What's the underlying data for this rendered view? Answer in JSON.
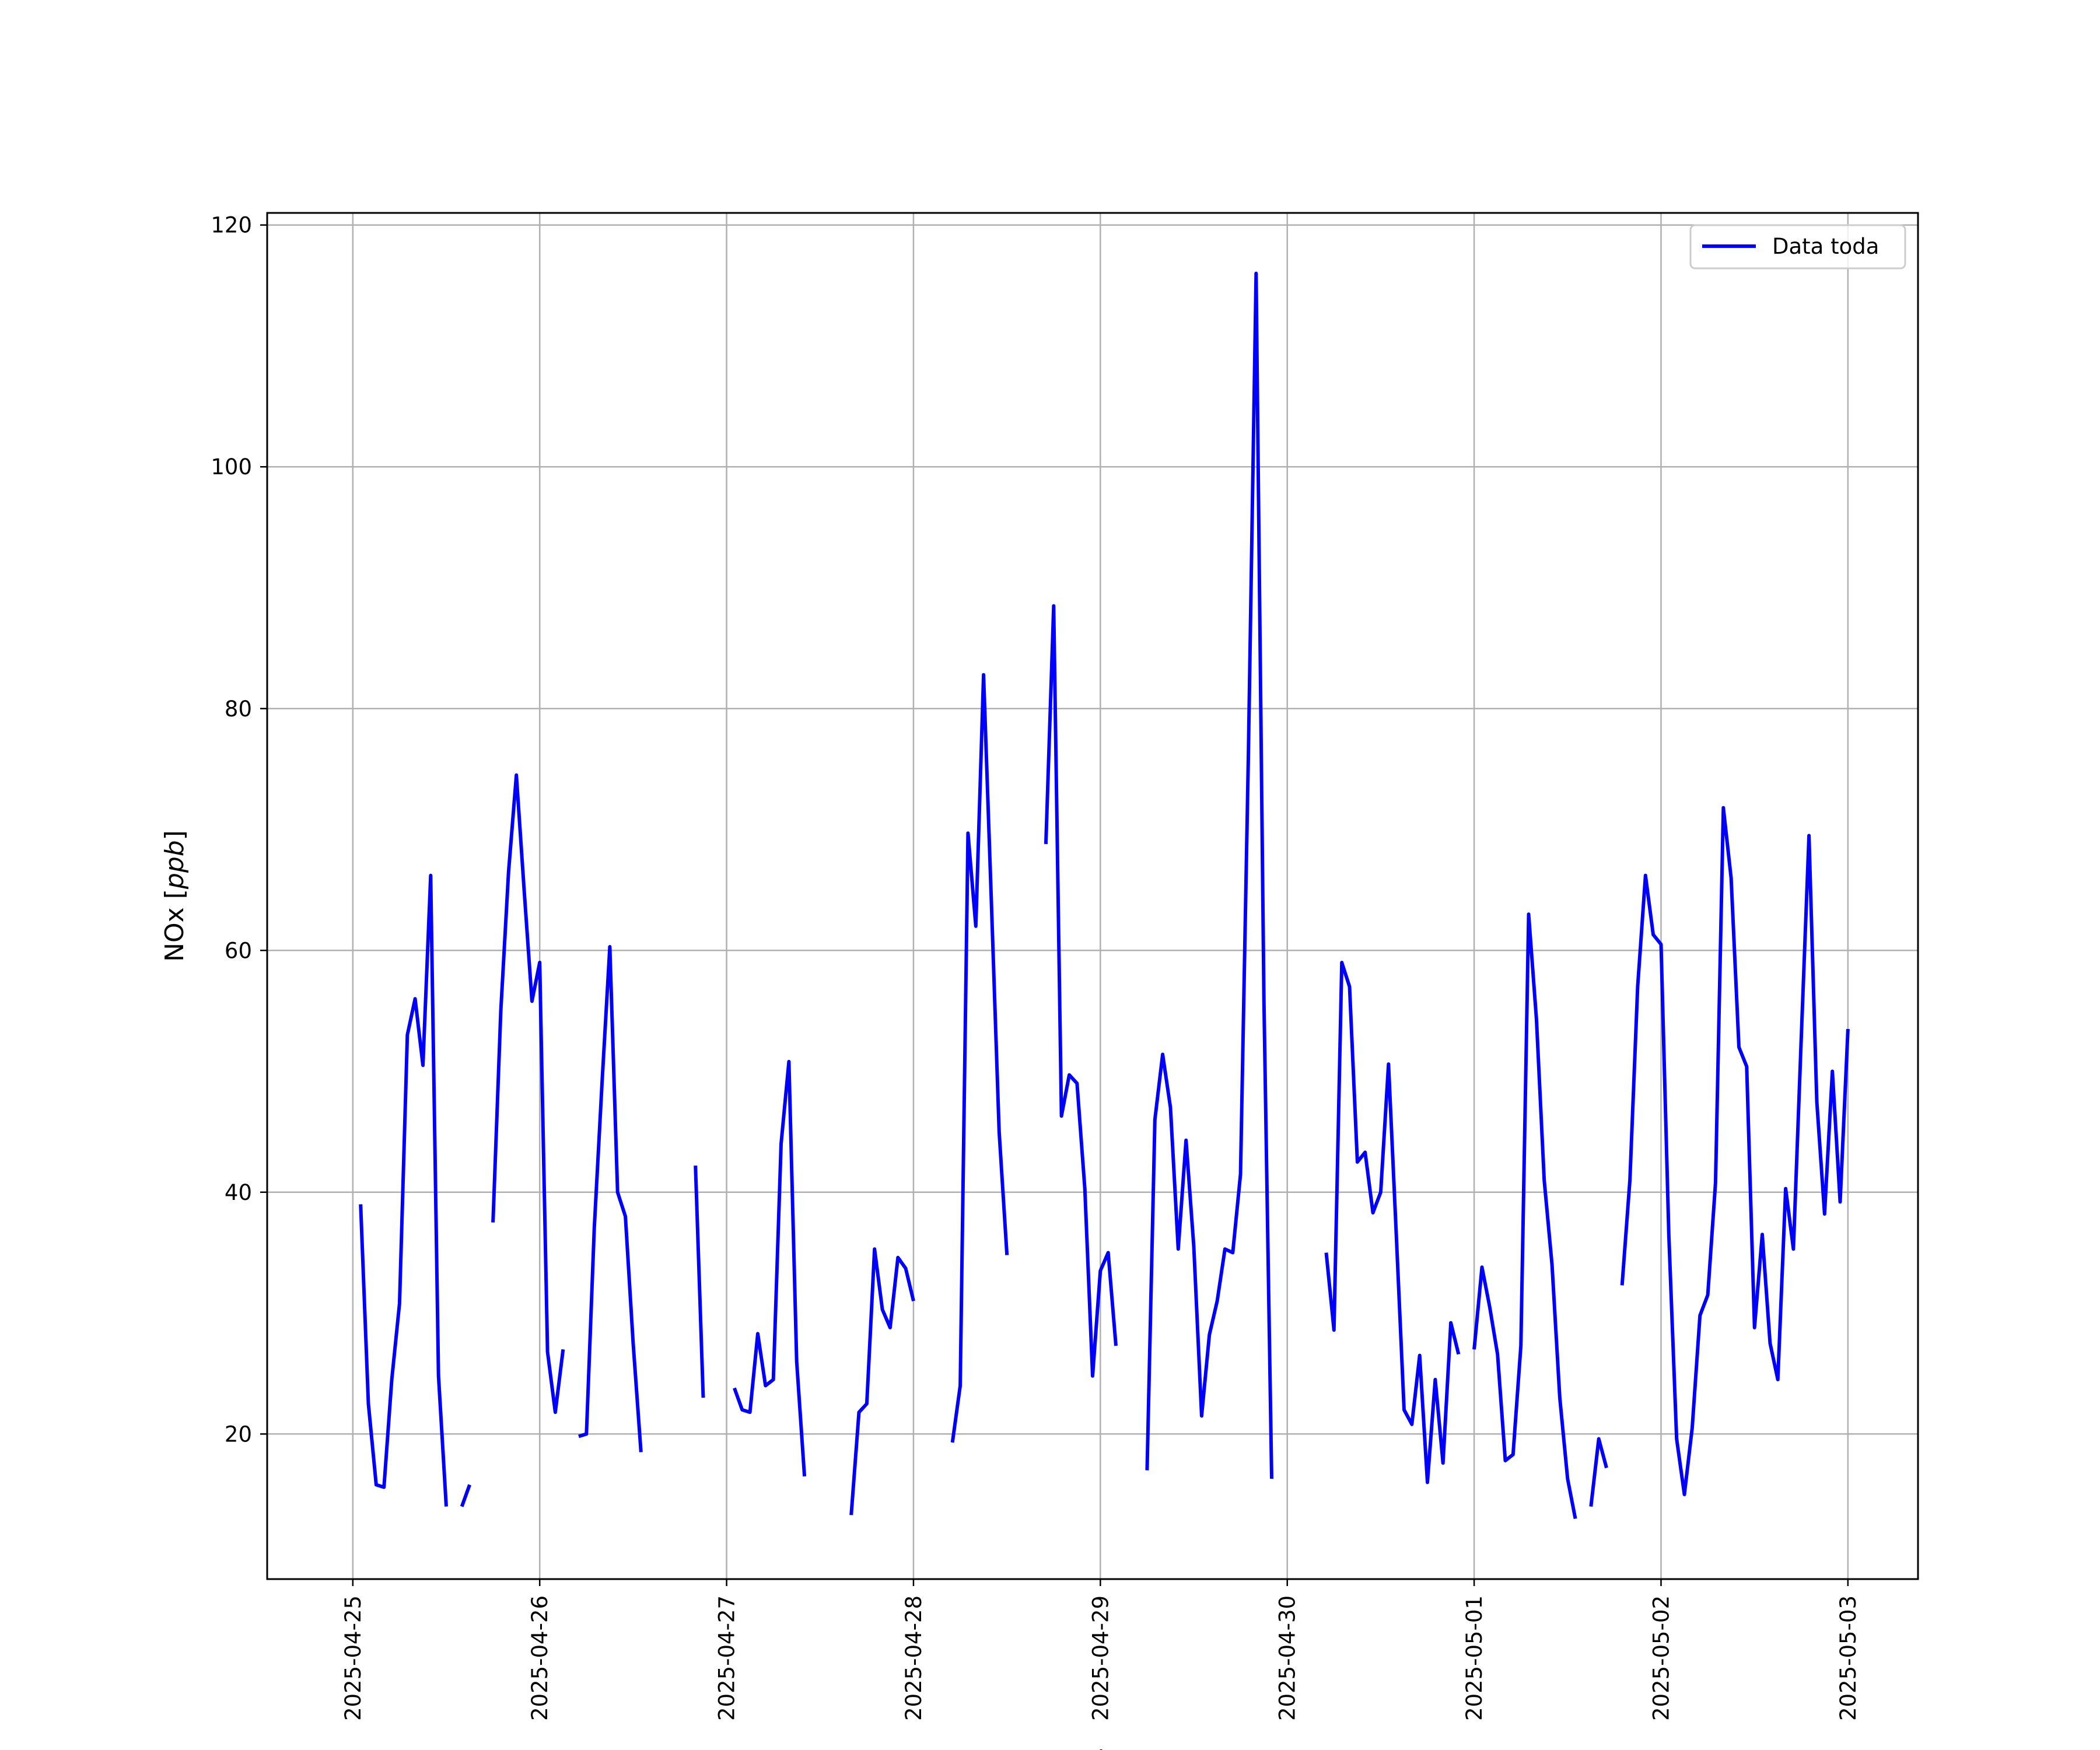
{
  "chart_data": {
    "type": "line",
    "title": "",
    "xlabel": "Fecha",
    "ylabel": "NOx [ppb]",
    "ylabel_text": "NOx ",
    "ylabel_unit": "ppb",
    "x_type": "datetime",
    "xlim": [
      "2025-04-24 13:00",
      "2025-05-03 09:00"
    ],
    "ylim": [
      8,
      121
    ],
    "xticks": [
      "2025-04-25",
      "2025-04-26",
      "2025-04-27",
      "2025-04-28",
      "2025-04-29",
      "2025-04-30",
      "2025-05-01",
      "2025-05-02",
      "2025-05-03"
    ],
    "yticks": [
      20,
      40,
      60,
      80,
      100,
      120
    ],
    "grid": true,
    "legend": "upper right",
    "series": [
      {
        "name": "Data toda",
        "color": "#0000ff",
        "points": [
          [
            "2025-04-25 01:00",
            39
          ],
          [
            "2025-04-25 02:00",
            22.5
          ],
          [
            "2025-04-25 03:00",
            15.8
          ],
          [
            "2025-04-25 04:00",
            15.6
          ],
          [
            "2025-04-25 05:00",
            24.5
          ],
          [
            "2025-04-25 06:00",
            30.8
          ],
          [
            "2025-04-25 07:00",
            53
          ],
          [
            "2025-04-25 08:00",
            56
          ],
          [
            "2025-04-25 09:00",
            50.5
          ],
          [
            "2025-04-25 10:00",
            66.2
          ],
          [
            "2025-04-25 11:00",
            24.8
          ],
          [
            "2025-04-25 12:00",
            14
          ],
          [
            "2025-04-25 13:00",
            null
          ],
          [
            "2025-04-25 14:00",
            14
          ],
          [
            "2025-04-25 15:00",
            15.8
          ],
          [
            "2025-04-25 16:00",
            null
          ],
          [
            "2025-04-25 17:00",
            null
          ],
          [
            "2025-04-25 18:00",
            37.5
          ],
          [
            "2025-04-25 19:00",
            55
          ],
          [
            "2025-04-25 20:00",
            66.5
          ],
          [
            "2025-04-25 21:00",
            74.5
          ],
          [
            "2025-04-25 22:00",
            65
          ],
          [
            "2025-04-25 23:00",
            55.8
          ],
          [
            "2025-04-26 00:00",
            59
          ],
          [
            "2025-04-26 01:00",
            26.8
          ],
          [
            "2025-04-26 02:00",
            21.8
          ],
          [
            "2025-04-26 03:00",
            27
          ],
          [
            "2025-04-26 04:00",
            null
          ],
          [
            "2025-04-26 05:00",
            19.8
          ],
          [
            "2025-04-26 06:00",
            20
          ],
          [
            "2025-04-26 07:00",
            37
          ],
          [
            "2025-04-26 08:00",
            49
          ],
          [
            "2025-04-26 09:00",
            60.3
          ],
          [
            "2025-04-26 10:00",
            40
          ],
          [
            "2025-04-26 11:00",
            38
          ],
          [
            "2025-04-26 12:00",
            27.5
          ],
          [
            "2025-04-26 13:00",
            18.5
          ],
          [
            "2025-04-26 14:00",
            null
          ],
          [
            "2025-04-26 20:00",
            42.2
          ],
          [
            "2025-04-26 21:00",
            23
          ],
          [
            "2025-04-26 22:00",
            null
          ],
          [
            "2025-04-27 01:00",
            23.8
          ],
          [
            "2025-04-27 02:00",
            22
          ],
          [
            "2025-04-27 03:00",
            21.8
          ],
          [
            "2025-04-27 04:00",
            28.3
          ],
          [
            "2025-04-27 05:00",
            24
          ],
          [
            "2025-04-27 06:00",
            24.5
          ],
          [
            "2025-04-27 07:00",
            44
          ],
          [
            "2025-04-27 08:00",
            50.8
          ],
          [
            "2025-04-27 09:00",
            26
          ],
          [
            "2025-04-27 10:00",
            16.5
          ],
          [
            "2025-04-27 11:00",
            null
          ],
          [
            "2025-04-27 16:00",
            13.3
          ],
          [
            "2025-04-27 17:00",
            21.8
          ],
          [
            "2025-04-27 18:00",
            22.5
          ],
          [
            "2025-04-27 19:00",
            35.3
          ],
          [
            "2025-04-27 20:00",
            30.3
          ],
          [
            "2025-04-27 21:00",
            28.8
          ],
          [
            "2025-04-27 22:00",
            34.6
          ],
          [
            "2025-04-27 23:00",
            33.7
          ],
          [
            "2025-04-28 00:00",
            31
          ],
          [
            "2025-04-28 01:00",
            null
          ],
          [
            "2025-04-28 05:00",
            19.3
          ],
          [
            "2025-04-28 06:00",
            24
          ],
          [
            "2025-04-28 07:00",
            69.7
          ],
          [
            "2025-04-28 08:00",
            62
          ],
          [
            "2025-04-28 09:00",
            82.8
          ],
          [
            "2025-04-28 10:00",
            64
          ],
          [
            "2025-04-28 11:00",
            45
          ],
          [
            "2025-04-28 12:00",
            34.8
          ],
          [
            "2025-04-28 13:00",
            null
          ],
          [
            "2025-04-28 17:00",
            68.8
          ],
          [
            "2025-04-28 18:00",
            88.5
          ],
          [
            "2025-04-28 19:00",
            46.3
          ],
          [
            "2025-04-28 20:00",
            49.7
          ],
          [
            "2025-04-28 21:00",
            49
          ],
          [
            "2025-04-28 22:00",
            40.3
          ],
          [
            "2025-04-28 23:00",
            24.8
          ],
          [
            "2025-04-29 00:00",
            33.5
          ],
          [
            "2025-04-29 01:00",
            35
          ],
          [
            "2025-04-29 02:00",
            27.3
          ],
          [
            "2025-04-29 03:00",
            null
          ],
          [
            "2025-04-29 06:00",
            17
          ],
          [
            "2025-04-29 07:00",
            46
          ],
          [
            "2025-04-29 08:00",
            51.4
          ],
          [
            "2025-04-29 09:00",
            47
          ],
          [
            "2025-04-29 10:00",
            35.3
          ],
          [
            "2025-04-29 11:00",
            44.3
          ],
          [
            "2025-04-29 12:00",
            35.5
          ],
          [
            "2025-04-29 13:00",
            21.5
          ],
          [
            "2025-04-29 14:00",
            28.2
          ],
          [
            "2025-04-29 15:00",
            31
          ],
          [
            "2025-04-29 16:00",
            35.3
          ],
          [
            "2025-04-29 17:00",
            35
          ],
          [
            "2025-04-29 18:00",
            41.5
          ],
          [
            "2025-04-29 19:00",
            76
          ],
          [
            "2025-04-29 20:00",
            116
          ],
          [
            "2025-04-29 21:00",
            56
          ],
          [
            "2025-04-29 22:00",
            16.3
          ],
          [
            "2025-04-29 23:00",
            null
          ],
          [
            "2025-04-30 05:00",
            35
          ],
          [
            "2025-04-30 06:00",
            28.6
          ],
          [
            "2025-04-30 07:00",
            59
          ],
          [
            "2025-04-30 08:00",
            57
          ],
          [
            "2025-04-30 09:00",
            42.5
          ],
          [
            "2025-04-30 10:00",
            43.3
          ],
          [
            "2025-04-30 11:00",
            38.3
          ],
          [
            "2025-04-30 12:00",
            40
          ],
          [
            "2025-04-30 13:00",
            50.6
          ],
          [
            "2025-04-30 14:00",
            36.5
          ],
          [
            "2025-04-30 15:00",
            22
          ],
          [
            "2025-04-30 16:00",
            20.8
          ],
          [
            "2025-04-30 17:00",
            26.5
          ],
          [
            "2025-04-30 18:00",
            16
          ],
          [
            "2025-04-30 19:00",
            24.5
          ],
          [
            "2025-04-30 20:00",
            17.6
          ],
          [
            "2025-04-30 21:00",
            29.2
          ],
          [
            "2025-04-30 22:00",
            26.6
          ],
          [
            "2025-04-30 23:00",
            null
          ],
          [
            "2025-05-01 00:00",
            27
          ],
          [
            "2025-05-01 01:00",
            33.8
          ],
          [
            "2025-05-01 02:00",
            30.5
          ],
          [
            "2025-05-01 03:00",
            26.6
          ],
          [
            "2025-05-01 04:00",
            17.8
          ],
          [
            "2025-05-01 05:00",
            18.3
          ],
          [
            "2025-05-01 06:00",
            27.3
          ],
          [
            "2025-05-01 07:00",
            63
          ],
          [
            "2025-05-01 08:00",
            54.3
          ],
          [
            "2025-05-01 09:00",
            41
          ],
          [
            "2025-05-01 10:00",
            34
          ],
          [
            "2025-05-01 11:00",
            23
          ],
          [
            "2025-05-01 12:00",
            16.3
          ],
          [
            "2025-05-01 13:00",
            13
          ],
          [
            "2025-05-01 14:00",
            null
          ],
          [
            "2025-05-01 15:00",
            14
          ],
          [
            "2025-05-01 16:00",
            19.6
          ],
          [
            "2025-05-01 17:00",
            17.2
          ],
          [
            "2025-05-01 18:00",
            null
          ],
          [
            "2025-05-01 19:00",
            32.3
          ],
          [
            "2025-05-01 20:00",
            41
          ],
          [
            "2025-05-01 21:00",
            57
          ],
          [
            "2025-05-01 22:00",
            66.2
          ],
          [
            "2025-05-01 23:00",
            61.3
          ],
          [
            "2025-05-02 00:00",
            60.5
          ],
          [
            "2025-05-02 01:00",
            36.5
          ],
          [
            "2025-05-02 02:00",
            19.6
          ],
          [
            "2025-05-02 03:00",
            15
          ],
          [
            "2025-05-02 04:00",
            20.5
          ],
          [
            "2025-05-02 05:00",
            29.8
          ],
          [
            "2025-05-02 06:00",
            31.5
          ],
          [
            "2025-05-02 07:00",
            40.8
          ],
          [
            "2025-05-02 08:00",
            71.8
          ],
          [
            "2025-05-02 09:00",
            66
          ],
          [
            "2025-05-02 10:00",
            52
          ],
          [
            "2025-05-02 11:00",
            50.4
          ],
          [
            "2025-05-02 12:00",
            28.8
          ],
          [
            "2025-05-02 13:00",
            36.5
          ],
          [
            "2025-05-02 14:00",
            27.5
          ],
          [
            "2025-05-02 15:00",
            24.5
          ],
          [
            "2025-05-02 16:00",
            40.3
          ],
          [
            "2025-05-02 17:00",
            35.3
          ],
          [
            "2025-05-02 18:00",
            52.7
          ],
          [
            "2025-05-02 19:00",
            69.5
          ],
          [
            "2025-05-02 20:00",
            47.5
          ],
          [
            "2025-05-02 21:00",
            38.2
          ],
          [
            "2025-05-02 22:00",
            50
          ],
          [
            "2025-05-02 23:00",
            39.2
          ],
          [
            "2025-05-03 00:00",
            53.5
          ]
        ]
      }
    ]
  }
}
